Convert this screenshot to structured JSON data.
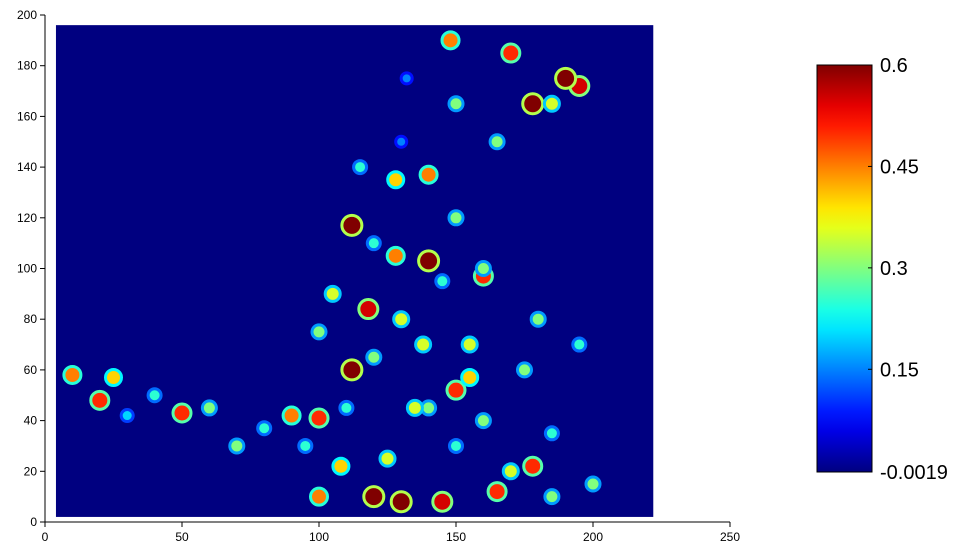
{
  "chart_data": {
    "type": "heatmap",
    "colormap": "jet",
    "xlim": [
      0,
      250
    ],
    "ylim": [
      0,
      200
    ],
    "xticks": [
      0,
      50,
      100,
      150,
      200,
      250
    ],
    "yticks": [
      0,
      20,
      40,
      60,
      80,
      100,
      120,
      140,
      160,
      180,
      200
    ],
    "image_xlim": [
      4,
      222
    ],
    "image_ylim": [
      2,
      196
    ],
    "clim": [
      -0.0019,
      0.6
    ],
    "cticks": [
      -0.0019,
      0.15,
      0.3,
      0.45,
      0.6
    ],
    "x": [
      112,
      112,
      118,
      140,
      120,
      130,
      145,
      178,
      195,
      165,
      178,
      150,
      100,
      170,
      148,
      160,
      100,
      50,
      20,
      10,
      25,
      90,
      140,
      128,
      108,
      125,
      155,
      175,
      180,
      160,
      140,
      105,
      130,
      170,
      185,
      150,
      110,
      95,
      70,
      40,
      60,
      120,
      150,
      115,
      130,
      132,
      165,
      185,
      150,
      160,
      145,
      138,
      120,
      100,
      195,
      185,
      200,
      80,
      30,
      135,
      155,
      128,
      190
    ],
    "y": [
      117,
      60,
      84,
      103,
      10,
      8,
      8,
      165,
      172,
      12,
      22,
      52,
      41,
      185,
      190,
      97,
      10,
      43,
      48,
      58,
      57,
      42,
      137,
      135,
      22,
      25,
      70,
      60,
      80,
      40,
      45,
      90,
      80,
      20,
      10,
      30,
      45,
      30,
      30,
      50,
      45,
      110,
      120,
      140,
      150,
      175,
      150,
      165,
      165,
      100,
      95,
      70,
      65,
      75,
      70,
      35,
      15,
      37,
      42,
      45,
      57,
      105,
      175
    ],
    "values": [
      0.6,
      0.6,
      0.55,
      0.6,
      0.6,
      0.6,
      0.55,
      0.6,
      0.55,
      0.5,
      0.5,
      0.5,
      0.5,
      0.5,
      0.45,
      0.5,
      0.45,
      0.5,
      0.5,
      0.45,
      0.4,
      0.45,
      0.45,
      0.4,
      0.4,
      0.35,
      0.35,
      0.3,
      0.3,
      0.3,
      0.3,
      0.35,
      0.35,
      0.35,
      0.3,
      0.25,
      0.25,
      0.25,
      0.3,
      0.25,
      0.3,
      0.25,
      0.3,
      0.25,
      0.15,
      0.15,
      0.3,
      0.35,
      0.3,
      0.3,
      0.25,
      0.35,
      0.3,
      0.3,
      0.25,
      0.25,
      0.3,
      0.25,
      0.2,
      0.35,
      0.4,
      0.45,
      0.6
    ]
  }
}
